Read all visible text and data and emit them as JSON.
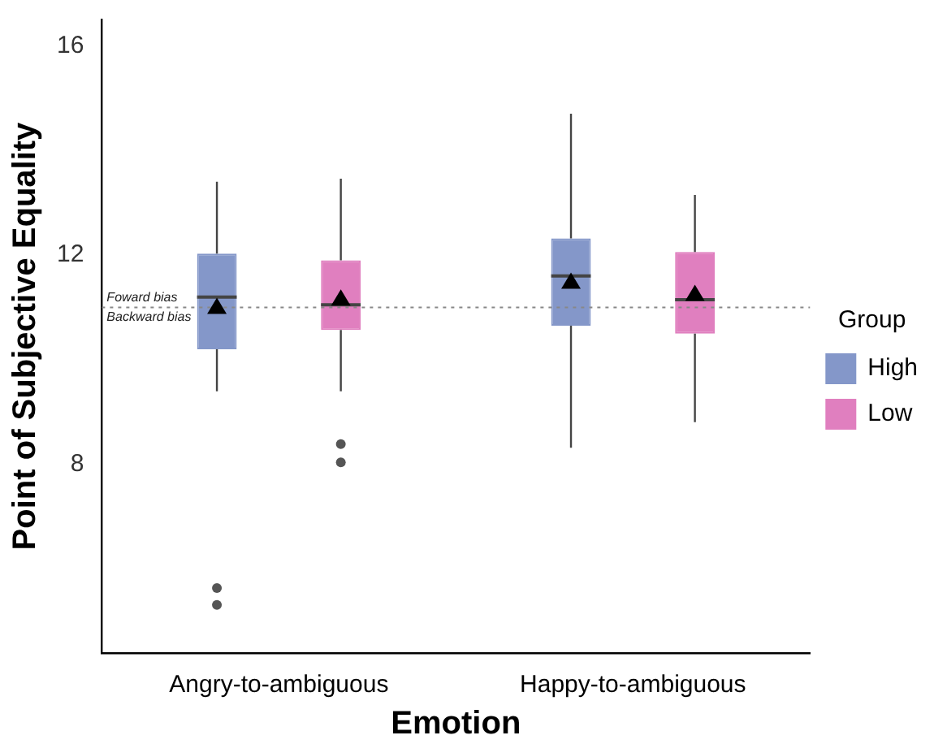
{
  "chart_data": {
    "type": "box",
    "xlabel": "Emotion",
    "ylabel": "Point of Subjective Equality",
    "legend_title": "Group",
    "legend": "right",
    "grid": false,
    "categories": [
      "Angry-to-ambiguous",
      "Happy-to-ambiguous"
    ],
    "ylim": [
      4.4,
      16.5
    ],
    "yticks": [
      8,
      12,
      16
    ],
    "series": [
      {
        "name": "High",
        "color": "#8497c9",
        "boxes": [
          {
            "low": 9.4,
            "q1": 10.2,
            "median": 11.2,
            "q3": 12.03,
            "high": 13.4,
            "mean": 11.0,
            "outliers": [
              5.64,
              5.32
            ]
          },
          {
            "low": 8.32,
            "q1": 10.65,
            "median": 11.6,
            "q3": 12.32,
            "high": 14.7,
            "mean": 11.48
          }
        ]
      },
      {
        "name": "Low",
        "color": "#e07fbf",
        "boxes": [
          {
            "low": 9.4,
            "q1": 10.57,
            "median": 11.05,
            "q3": 11.9,
            "high": 13.46,
            "mean": 11.16,
            "outliers": [
              8.39,
              8.04
            ]
          },
          {
            "low": 8.81,
            "q1": 10.5,
            "median": 11.15,
            "q3": 12.06,
            "high": 13.15,
            "mean": 11.25
          }
        ]
      }
    ],
    "ref_lines": [
      {
        "axis": "y",
        "value": 11,
        "color": "#888888",
        "line_style": "dotted"
      }
    ],
    "annotations": [
      "Foward bias",
      "Backward bias"
    ]
  }
}
